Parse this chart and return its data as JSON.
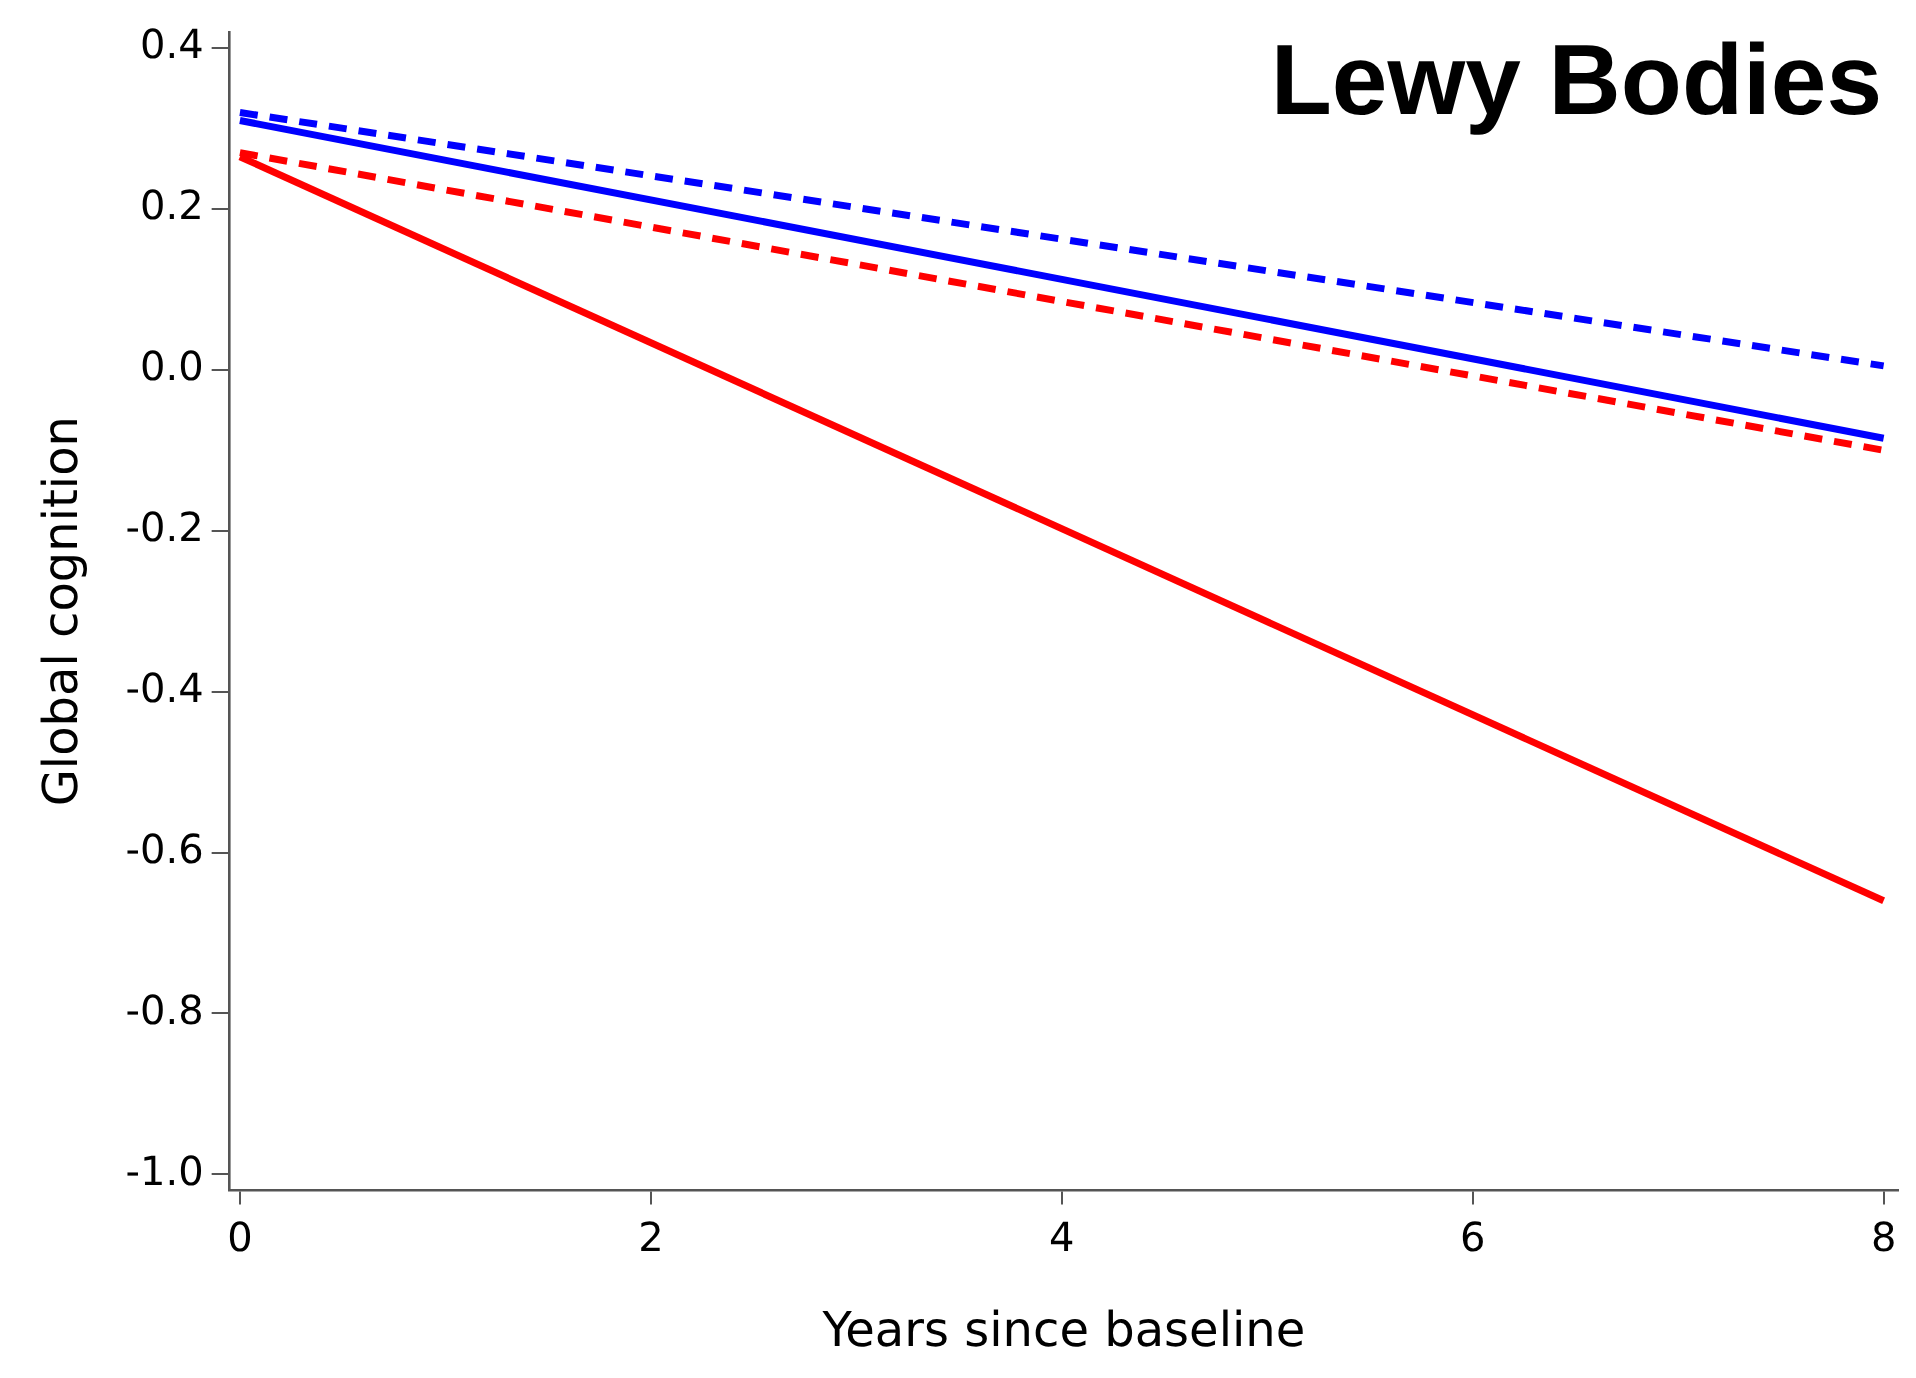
{
  "chart_data": {
    "type": "line",
    "title": "Lewy Bodies",
    "xlabel": "Years since baseline",
    "ylabel": "Global cognition",
    "x": [
      0,
      8
    ],
    "xlim": [
      -0.05,
      8.07
    ],
    "xticks": [
      0,
      2,
      4,
      6,
      8
    ],
    "ylim": [
      -1.02,
      0.42
    ],
    "yticks": [
      {
        "value": 0.4,
        "label": "0.4"
      },
      {
        "value": 0.2,
        "label": "0.2"
      },
      {
        "value": 0,
        "label": "0.0"
      },
      {
        "value": -0.2,
        "label": "-0.2"
      },
      {
        "value": -0.4,
        "label": "-0.4"
      },
      {
        "value": -0.6,
        "label": "-0.6"
      },
      {
        "value": -0.8,
        "label": "-0.8"
      },
      {
        "value": -1,
        "label": "-1.0"
      }
    ],
    "series": [
      {
        "color": "#0000ff",
        "values": [
          0.32,
          0.005
        ],
        "line_style": "dashed"
      },
      {
        "color": "#0000ff",
        "values": [
          0.31,
          -0.085
        ],
        "line_style": "solid"
      },
      {
        "color": "#ff0000",
        "values": [
          0.27,
          -0.1
        ],
        "line_style": "dashed"
      },
      {
        "color": "#ff0000",
        "values": [
          0.265,
          -0.66
        ],
        "line_style": "solid"
      }
    ],
    "grid": false,
    "legend": false,
    "marker": "none"
  }
}
